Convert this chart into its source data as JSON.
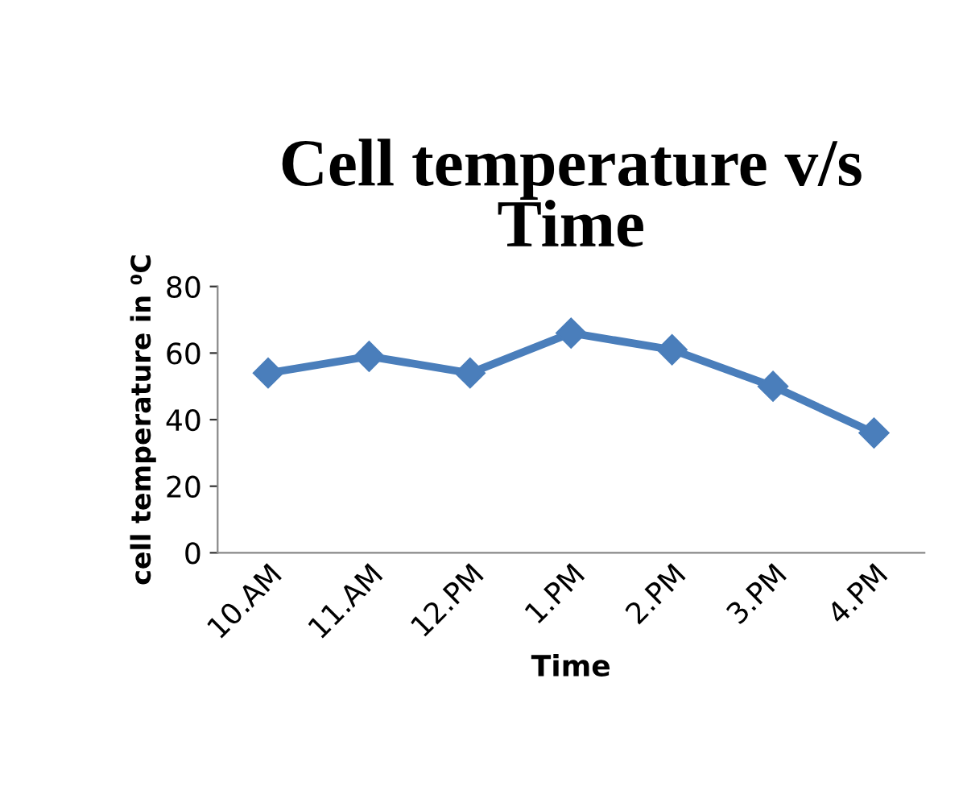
{
  "chart_data": {
    "type": "line",
    "title": "Cell temperature v/s\nTime",
    "xlabel": "Time",
    "ylabel": "cell temperature in ⁰C",
    "categories": [
      "10.AM",
      "11.AM",
      "12.PM",
      "1.PM",
      "2.PM",
      "3.PM",
      "4.PM"
    ],
    "series": [
      {
        "color": "#4a7ebb",
        "values": [
          54,
          59,
          54,
          66,
          61,
          50,
          36
        ]
      }
    ],
    "ylim": [
      0,
      80
    ],
    "yticks": [
      0,
      20,
      40,
      60,
      80
    ],
    "grid": false,
    "marker": "diamond",
    "line_style": "solid"
  }
}
